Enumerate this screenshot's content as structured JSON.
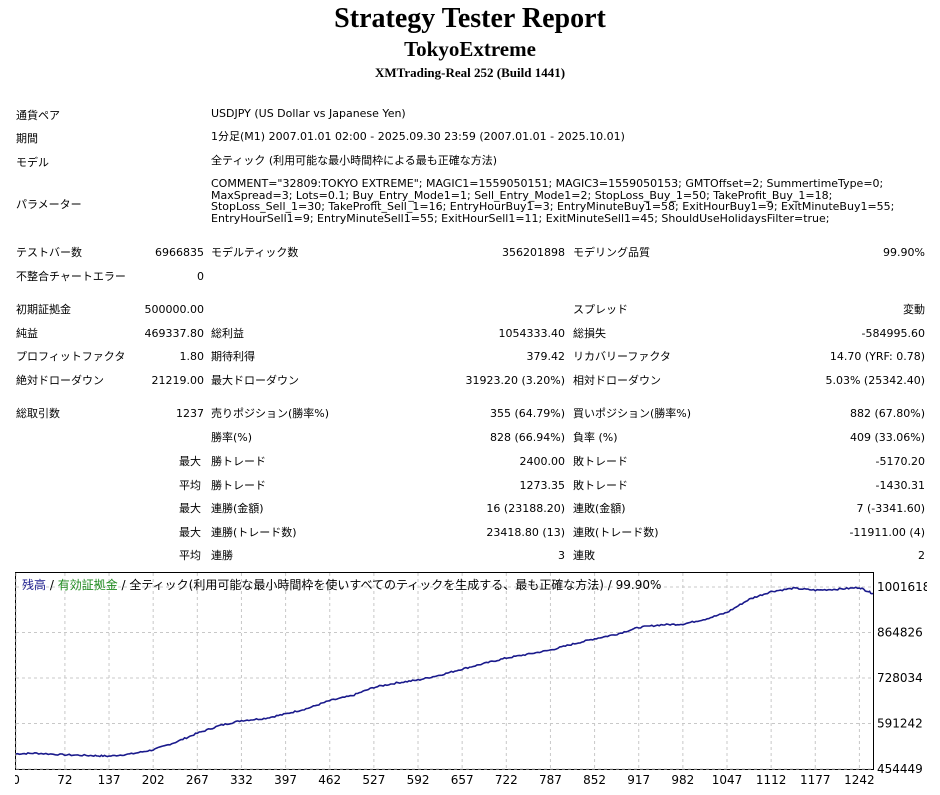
{
  "report": {
    "title": "Strategy Tester Report",
    "expert": "TokyoExtreme",
    "server": "XMTrading-Real 252 (Build 1441)"
  },
  "info": [
    {
      "label": "通貨ペア",
      "value": "USDJPY (US Dollar vs Japanese Yen)"
    },
    {
      "label": "期間",
      "value": "1分足(M1) 2007.01.01 02:00 - 2025.09.30 23:59 (2007.01.01 - 2025.10.01)"
    },
    {
      "label": "モデル",
      "value": "全ティック (利用可能な最小時間枠による最も正確な方法)"
    },
    {
      "label": "パラメーター",
      "value": "COMMENT=\"32809:TOKYO EXTREME\"; MAGIC1=1559050151; MAGIC3=1559050153; GMTOffset=2; SummertimeType=0;\nMaxSpread=3; Lots=0.1; Buy_Entry_Mode1=1; Sell_Entry_Mode1=2; StopLoss_Buy_1=50; TakeProfit_Buy_1=18;\nStopLoss_Sell_1=30; TakeProfit_Sell_1=16; EntryHourBuy1=3; EntryMinuteBuy1=58; ExitHourBuy1=9; ExitMinuteBuy1=55;\nEntryHourSell1=9; EntryMinuteSell1=55; ExitHourSell1=11; ExitMinuteSell1=45; ShouldUseHolidaysFilter=true;"
    }
  ],
  "summary": {
    "bars_label": "テストバー数",
    "bars": "6966835",
    "ticks_label": "モデルティック数",
    "ticks": "356201898",
    "quality_label": "モデリング品質",
    "quality": "99.90%",
    "mismatch_label": "不整合チャートエラー",
    "mismatch": "0",
    "deposit_label": "初期証拠金",
    "deposit": "500000.00",
    "spread_label": "スプレッド",
    "spread": "変動",
    "net_label": "純益",
    "net": "469337.80",
    "gross_profit_label": "総利益",
    "gross_profit": "1054333.40",
    "gross_loss_label": "総損失",
    "gross_loss": "-584995.60",
    "pf_label": "プロフィットファクタ",
    "pf": "1.80",
    "expected_label": "期待利得",
    "expected": "379.42",
    "recovery_label": "リカバリーファクタ",
    "recovery": "14.70 (YRF: 0.78)",
    "abs_dd_label": "絶対ドローダウン",
    "abs_dd": "21219.00",
    "max_dd_label": "最大ドローダウン",
    "max_dd": "31923.20 (3.20%)",
    "rel_dd_label": "相対ドローダウン",
    "rel_dd": "5.03% (25342.40)",
    "trades_label": "総取引数",
    "trades": "1237",
    "short_label": "売りポジション(勝率%)",
    "short": "355 (64.79%)",
    "long_label": "買いポジション(勝率%)",
    "long": "882 (67.80%)",
    "winrate_label": "勝率(%)",
    "winrate": "828 (66.94%)",
    "lossrate_label": "負率 (%)",
    "lossrate": "409 (33.06%)"
  },
  "stats_rows": [
    {
      "prefix": "最大",
      "l1": "勝トレード",
      "v1": "2400.00",
      "l2": "敗トレード",
      "v2": "-5170.20"
    },
    {
      "prefix": "平均",
      "l1": "勝トレード",
      "v1": "1273.35",
      "l2": "敗トレード",
      "v2": "-1430.31"
    },
    {
      "prefix": "最大",
      "l1": "連勝(金額)",
      "v1": "16 (23188.20)",
      "l2": "連敗(金額)",
      "v2": "7 (-3341.60)"
    },
    {
      "prefix": "最大",
      "l1": "連勝(トレード数)",
      "v1": "23418.80 (13)",
      "l2": "連敗(トレード数)",
      "v2": "-11911.00 (4)"
    },
    {
      "prefix": "平均",
      "l1": "連勝",
      "v1": "3",
      "l2": "連敗",
      "v2": "2"
    }
  ],
  "legend": {
    "balance": "残高",
    "sep1": " / ",
    "equity": "有効証拠金",
    "rest": " / 全ティック(利用可能な最小時間枠を使いすべてのティックを生成する、最も正確な方法) / 99.90%"
  },
  "colors": {
    "line": "#1a1a8c",
    "grid": "#c8c8c8",
    "border": "#000000",
    "balance_text": "#1a1a8c",
    "equity_text": "#1f8a1f"
  },
  "chart_data": {
    "type": "line",
    "series": [
      {
        "name": "残高",
        "x": [
          0,
          30,
          72,
          110,
          137,
          170,
          202,
          235,
          267,
          300,
          332,
          365,
          397,
          430,
          462,
          495,
          527,
          560,
          592,
          625,
          657,
          690,
          722,
          755,
          787,
          820,
          852,
          885,
          917,
          950,
          982,
          1015,
          1047,
          1080,
          1112,
          1145,
          1177,
          1210,
          1242,
          1262
        ],
        "values": [
          500000,
          502000,
          497000,
          495000,
          493000,
          500000,
          512000,
          535000,
          562000,
          585000,
          600000,
          606000,
          620000,
          637000,
          660000,
          675000,
          700000,
          713000,
          722000,
          737000,
          755000,
          772000,
          788000,
          800000,
          812000,
          830000,
          846000,
          860000,
          880000,
          888000,
          890000,
          905000,
          925000,
          965000,
          988000,
          998000,
          992000,
          995000,
          1000000,
          982000
        ]
      }
    ],
    "x_ticks": [
      "0",
      "72",
      "137",
      "202",
      "267",
      "332",
      "397",
      "462",
      "527",
      "592",
      "657",
      "722",
      "787",
      "852",
      "917",
      "982",
      "1047",
      "1112",
      "1177",
      "1242"
    ],
    "y_ticks": [
      "1001618",
      "864826",
      "728034",
      "591242",
      "454449"
    ],
    "xlim": [
      0,
      1262
    ],
    "ylim": [
      454449,
      1001618
    ],
    "grid": true
  }
}
